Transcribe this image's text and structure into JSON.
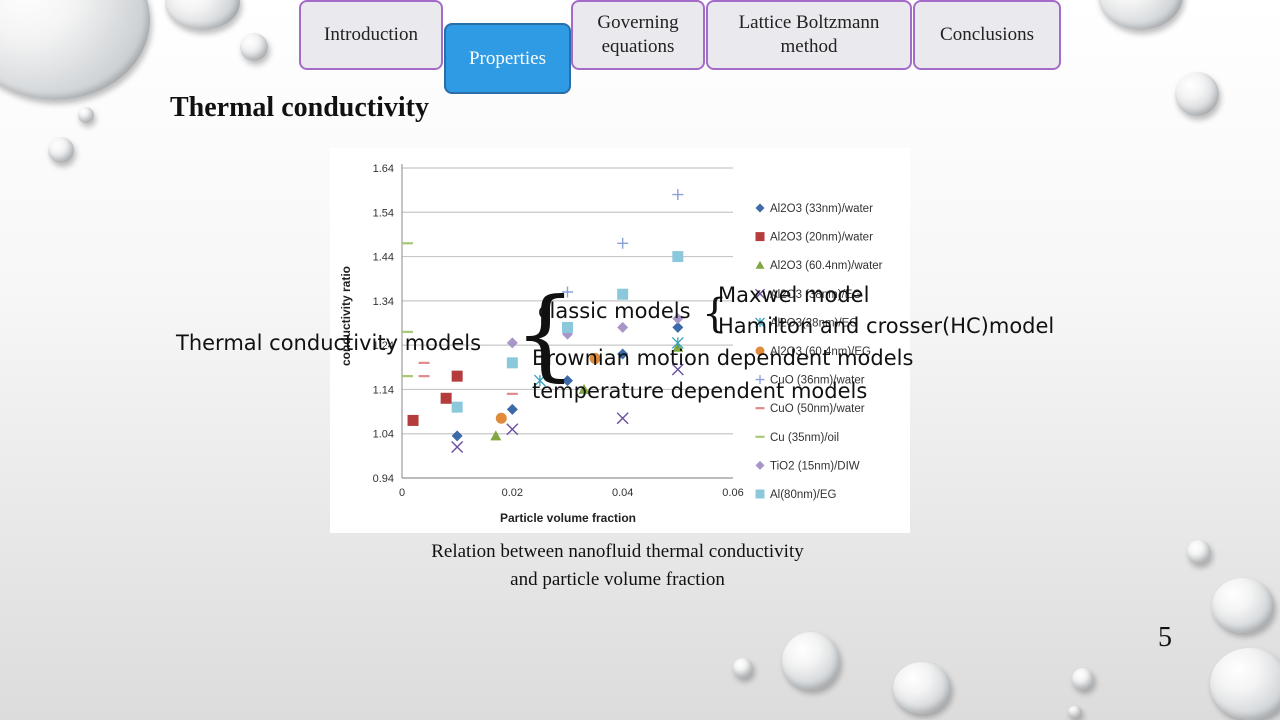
{
  "nav": {
    "tabs": [
      {
        "label": "Introduction"
      },
      {
        "label": "Properties",
        "active": true
      },
      {
        "label": "Governing equations"
      },
      {
        "label": "Lattice Boltzmann method"
      },
      {
        "label": "Conclusions"
      }
    ],
    "active_color": "#2f9be4",
    "border_color": "#a46cc8"
  },
  "slide": {
    "title": "Thermal conductivity",
    "caption_line1": "Relation between nanofluid thermal conductivity",
    "caption_line2": "and particle volume fraction",
    "page_number": "5"
  },
  "overlay": {
    "models_label": "Thermal conductivity models",
    "classic_models": "classic models",
    "maxwell": "Maxwel model",
    "hamilton": "Hamilton and crosser(HC)model",
    "brownian": "Brownian motion dependent models",
    "temperature": "temperature dependent models"
  },
  "chart_data": {
    "type": "scatter",
    "xlabel": "Particle volume fraction",
    "ylabel": "conductivity ratio",
    "xlim": [
      0,
      0.06
    ],
    "ylim": [
      0.94,
      1.64
    ],
    "xticks": [
      "0",
      "0.02",
      "0.04",
      "0.06"
    ],
    "yticks": [
      "0.94",
      "1.04",
      "1.14",
      "1.24",
      "1.34",
      "1.44",
      "1.54",
      "1.64"
    ],
    "grid": "horizontal",
    "legend_position": "right",
    "series": [
      {
        "name": "Al2O3 (33nm)/water",
        "marker": "diamond",
        "color": "#3c6aa8",
        "points": [
          [
            0.01,
            1.035
          ],
          [
            0.02,
            1.095
          ],
          [
            0.03,
            1.16
          ],
          [
            0.04,
            1.22
          ],
          [
            0.05,
            1.28
          ]
        ]
      },
      {
        "name": "Al2O3 (20nm)/water",
        "marker": "square",
        "color": "#b43c3c",
        "points": [
          [
            0.002,
            1.07
          ],
          [
            0.008,
            1.12
          ],
          [
            0.01,
            1.17
          ]
        ]
      },
      {
        "name": "Al2O3 (60.4nm)/water",
        "marker": "triangle",
        "color": "#80a840",
        "points": [
          [
            0.017,
            1.035
          ],
          [
            0.033,
            1.14
          ],
          [
            0.05,
            1.235
          ]
        ]
      },
      {
        "name": "Al2O3 (38nm)/EG",
        "marker": "x",
        "color": "#6a4fa0",
        "points": [
          [
            0.01,
            1.01
          ],
          [
            0.02,
            1.05
          ],
          [
            0.04,
            1.075
          ],
          [
            0.05,
            1.185
          ]
        ]
      },
      {
        "name": "Al2O3(28nm)/EG",
        "marker": "star",
        "color": "#3aa0b8",
        "points": [
          [
            0.025,
            1.16
          ],
          [
            0.05,
            1.245
          ]
        ]
      },
      {
        "name": "Al2O3 (60.4nm)/EG",
        "marker": "circle",
        "color": "#e08a3a",
        "points": [
          [
            0.018,
            1.075
          ],
          [
            0.035,
            1.21
          ]
        ]
      },
      {
        "name": "CuO (36nm)/water",
        "marker": "plus",
        "color": "#8aa0d8",
        "points": [
          [
            0.03,
            1.36
          ],
          [
            0.04,
            1.47
          ],
          [
            0.05,
            1.58
          ]
        ]
      },
      {
        "name": "CuO (50nm)/water",
        "marker": "dash",
        "color": "#e08a8a",
        "points": [
          [
            0.004,
            1.2
          ],
          [
            0.004,
            1.17
          ],
          [
            0.02,
            1.13
          ]
        ]
      },
      {
        "name": "Cu (35nm)/oil",
        "marker": "dash",
        "color": "#a6c878",
        "points": [
          [
            0.001,
            1.47
          ],
          [
            0.001,
            1.27
          ],
          [
            0.001,
            1.17
          ]
        ]
      },
      {
        "name": "TiO2 (15nm)/DIW",
        "marker": "diamond",
        "color": "#a896c8",
        "points": [
          [
            0.02,
            1.245
          ],
          [
            0.03,
            1.265
          ],
          [
            0.04,
            1.28
          ],
          [
            0.05,
            1.3
          ]
        ]
      },
      {
        "name": "Al(80nm)/EG",
        "marker": "square",
        "color": "#8cc8dc",
        "points": [
          [
            0.01,
            1.1
          ],
          [
            0.02,
            1.2
          ],
          [
            0.03,
            1.28
          ],
          [
            0.04,
            1.355
          ],
          [
            0.05,
            1.44
          ]
        ]
      }
    ]
  }
}
